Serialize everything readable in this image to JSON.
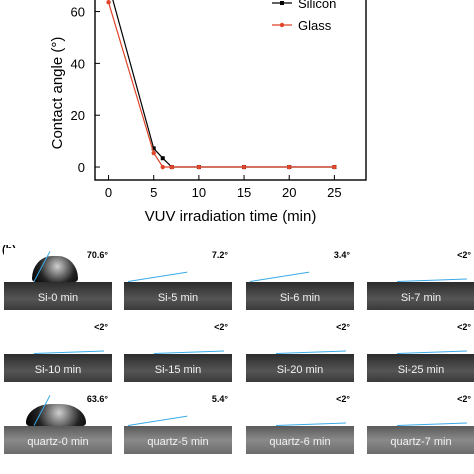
{
  "chart_data": {
    "type": "line",
    "xlabel": "VUV irradiation time (min)",
    "ylabel": "Contact angle (°)",
    "xticks": [
      0,
      5,
      10,
      15,
      20,
      25
    ],
    "yticks": [
      0,
      20,
      40,
      60
    ],
    "xlim": [
      -1.5,
      28.5
    ],
    "ylim": [
      -5,
      66
    ],
    "legend_position": "top-right",
    "series": [
      {
        "name": "Silicon",
        "color": "#000000",
        "x": [
          0,
          5,
          6,
          7,
          10,
          15,
          20,
          25
        ],
        "y": [
          70.6,
          7.2,
          3.4,
          0,
          0,
          0,
          0,
          0
        ]
      },
      {
        "name": "Glass",
        "color": "#e0452a",
        "x": [
          0,
          5,
          6,
          7,
          10,
          15,
          20,
          25
        ],
        "y": [
          63.6,
          5.4,
          0,
          0,
          0,
          0,
          0,
          0
        ]
      }
    ]
  },
  "panel_b": {
    "label": "(b)",
    "tiles": [
      {
        "name": "Si-0 min",
        "angle": "70.6°",
        "type": "silicon",
        "drop": "high"
      },
      {
        "name": "Si-5 min",
        "angle": "7.2°",
        "type": "silicon",
        "drop": "low"
      },
      {
        "name": "Si-6 min",
        "angle": "3.4°",
        "type": "silicon",
        "drop": "low"
      },
      {
        "name": "Si-7 min",
        "angle": "<2°",
        "type": "silicon",
        "drop": "flat"
      },
      {
        "name": "Si-10 min",
        "angle": "<2°",
        "type": "silicon",
        "drop": "flat"
      },
      {
        "name": "Si-15 min",
        "angle": "<2°",
        "type": "silicon",
        "drop": "flat"
      },
      {
        "name": "Si-20 min",
        "angle": "<2°",
        "type": "silicon",
        "drop": "flat"
      },
      {
        "name": "Si-25 min",
        "angle": "<2°",
        "type": "silicon",
        "drop": "flat"
      },
      {
        "name": "quartz-0 min",
        "angle": "63.6°",
        "type": "quartz",
        "drop": "high"
      },
      {
        "name": "quartz-5 min",
        "angle": "5.4°",
        "type": "quartz",
        "drop": "low"
      },
      {
        "name": "quartz-6 min",
        "angle": "<2°",
        "type": "quartz",
        "drop": "flat"
      },
      {
        "name": "quartz-7 min",
        "angle": "<2°",
        "type": "quartz",
        "drop": "flat"
      }
    ]
  }
}
